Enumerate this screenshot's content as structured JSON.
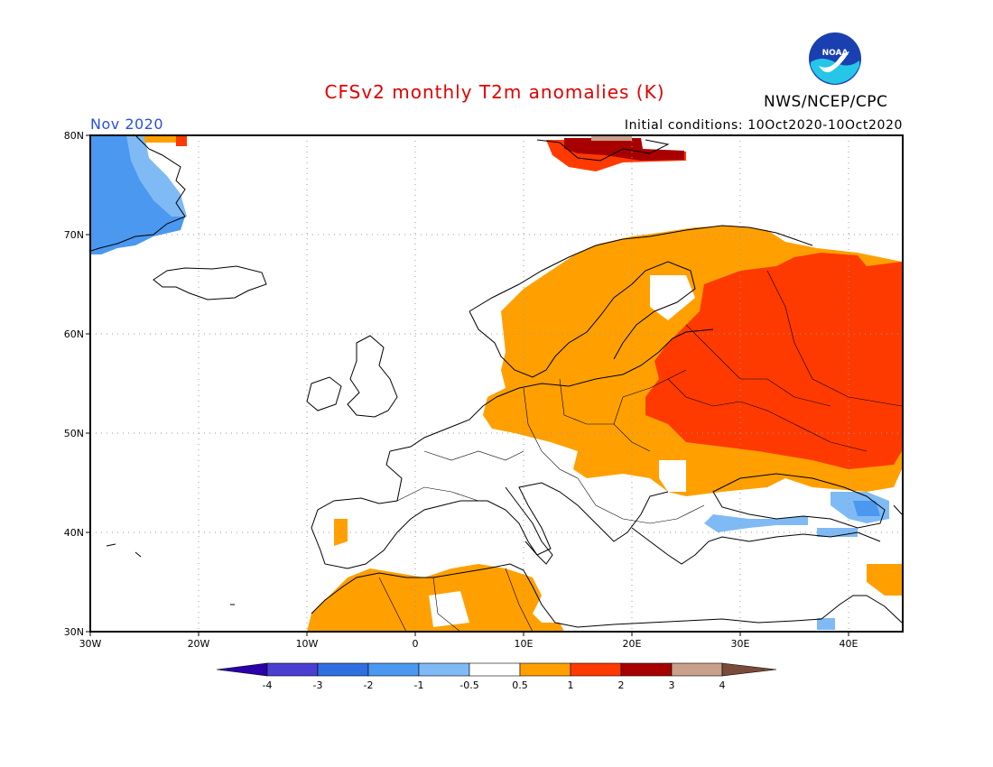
{
  "header": {
    "title": "CFSv2 monthly T2m anomalies (K)",
    "organization": "NWS/NCEP/CPC",
    "month": "Nov 2020",
    "initial_conditions": "Initial conditions: 10Oct2020-10Oct2020",
    "logo_text": "NOAA"
  },
  "map": {
    "lon_range": [
      -30,
      45
    ],
    "lat_range": [
      30,
      80
    ],
    "lon_ticks": [
      "30W",
      "20W",
      "10W",
      "0",
      "10E",
      "20E",
      "30E",
      "40E"
    ],
    "lat_ticks": [
      "30N",
      "40N",
      "50N",
      "60N",
      "70N",
      "80N"
    ],
    "gridlines": "dotted"
  },
  "colorbar": {
    "labels": [
      "-4",
      "-3",
      "-2",
      "-1",
      "-0.5",
      "0.5",
      "1",
      "2",
      "3",
      "4"
    ],
    "colors": [
      "#2a00a8",
      "#4a3fd0",
      "#2f6fe0",
      "#4a98f0",
      "#7fbaf5",
      "#ffffff",
      "#ffa000",
      "#ff3a00",
      "#a80000",
      "#c8a08c",
      "#7a4a3a"
    ]
  },
  "anomaly_regions": [
    {
      "name": "Greenland east coast",
      "anomaly": "-1 to -2"
    },
    {
      "name": "Scandinavia",
      "anomaly": "0.5 to 1"
    },
    {
      "name": "Western Russia / Ukraine / Belarus",
      "anomaly": "1 to 2"
    },
    {
      "name": "Svalbard",
      "anomaly": "2 to 3"
    },
    {
      "name": "Central Europe",
      "anomaly": "0.5 to 1"
    },
    {
      "name": "Morocco / Algeria",
      "anomaly": "0.5 to 1"
    },
    {
      "name": "Black Sea / Turkey",
      "anomaly": "-0.5 to -1"
    }
  ]
}
